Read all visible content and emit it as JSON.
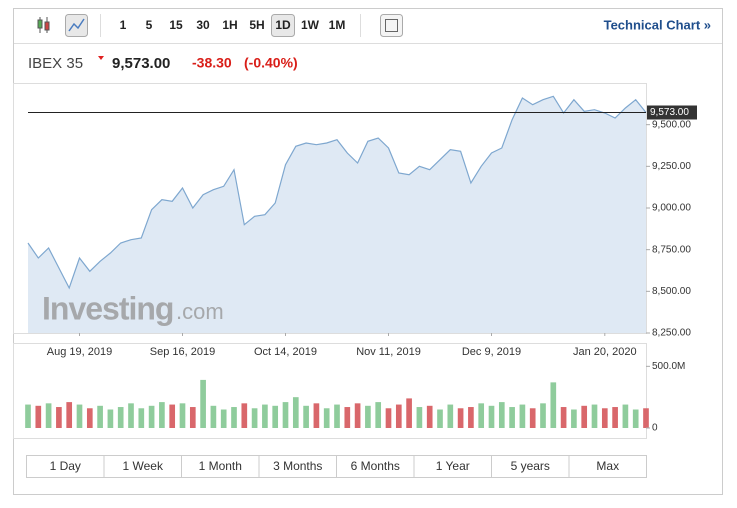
{
  "toolbar": {
    "intervals": [
      "1",
      "5",
      "15",
      "30",
      "1H",
      "5H",
      "1D",
      "1W",
      "1M"
    ],
    "active": "1D",
    "link": "Technical Chart »"
  },
  "quote": {
    "name": "IBEX 35",
    "price": "9,573.00",
    "change": "-38.30",
    "change_pct": "(-0.40%)"
  },
  "watermark": {
    "brand": "Investing",
    "suffix": ".com"
  },
  "ranges": [
    "1 Day",
    "1 Week",
    "1 Month",
    "3 Months",
    "6 Months",
    "1 Year",
    "5 years",
    "Max"
  ],
  "chart_data": {
    "type": "area",
    "categories": [
      null,
      null,
      null,
      null,
      null,
      "Aug 19, 2019",
      null,
      null,
      null,
      null,
      null,
      null,
      null,
      null,
      null,
      "Sep 16, 2019",
      null,
      null,
      null,
      null,
      null,
      null,
      null,
      null,
      null,
      "Oct 14, 2019",
      null,
      null,
      null,
      null,
      null,
      null,
      null,
      null,
      null,
      "Nov 11, 2019",
      null,
      null,
      null,
      null,
      null,
      null,
      null,
      null,
      null,
      "Dec 9, 2019",
      null,
      null,
      null,
      null,
      null,
      null,
      null,
      null,
      null,
      null,
      "Jan 20, 2020",
      null,
      null,
      null,
      null
    ],
    "series": [
      {
        "name": "IBEX 35",
        "color": "#7ea7cf",
        "fill": "#dfe9f4",
        "values": [
          8790,
          8700,
          8760,
          8640,
          8520,
          8700,
          8620,
          8680,
          8730,
          8790,
          8810,
          8820,
          8990,
          9050,
          9040,
          9120,
          9000,
          9080,
          9110,
          9130,
          9230,
          8900,
          8950,
          8960,
          9030,
          9260,
          9370,
          9390,
          9380,
          9390,
          9410,
          9330,
          9270,
          9400,
          9420,
          9360,
          9210,
          9200,
          9250,
          9230,
          9290,
          9350,
          9340,
          9150,
          9250,
          9330,
          9360,
          9530,
          9660,
          9620,
          9650,
          9670,
          9570,
          9650,
          9580,
          9590,
          9570,
          9540,
          9600,
          9650,
          9573
        ]
      },
      {
        "name": "Volume",
        "axis": "y2",
        "up_color": "#8fcc9c",
        "down_color": "#d9676b",
        "values": [
          190,
          180,
          200,
          170,
          210,
          190,
          160,
          180,
          150,
          170,
          200,
          160,
          180,
          210,
          190,
          200,
          170,
          390,
          180,
          150,
          170,
          200,
          160,
          190,
          180,
          210,
          250,
          180,
          200,
          160,
          190,
          170,
          200,
          180,
          210,
          160,
          190,
          240,
          170,
          180,
          150,
          190,
          160,
          170,
          200,
          180,
          210,
          170,
          190,
          160,
          200,
          370,
          170,
          150,
          180,
          190,
          160,
          170,
          190,
          150,
          160
        ]
      }
    ],
    "ylim": [
      8250,
      9750
    ],
    "yticks": [
      {
        "value": 8250,
        "label": "8,250.00"
      },
      {
        "value": 8500,
        "label": "8,500.00"
      },
      {
        "value": 8750,
        "label": "8,750.00"
      },
      {
        "value": 9000,
        "label": "9,000.00"
      },
      {
        "value": 9250,
        "label": "9,250.00"
      },
      {
        "value": 9500,
        "label": "9,500.00"
      }
    ],
    "y2lim": [
      0,
      600
    ],
    "y2ticks": [
      0,
      {
        "value": 500,
        "label": "500.0M"
      }
    ],
    "current_price": {
      "value": 9573,
      "label": "9,573.00"
    }
  }
}
